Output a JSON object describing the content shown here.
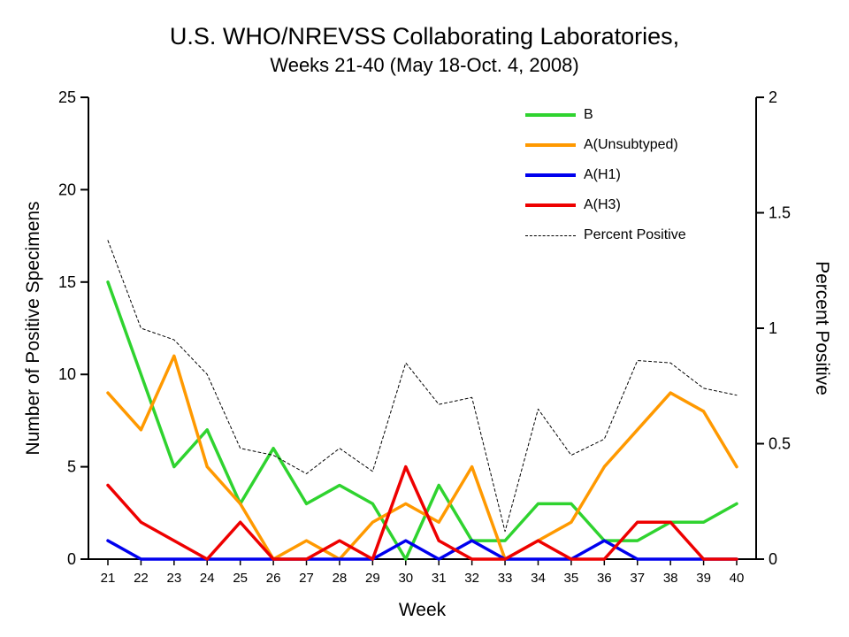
{
  "title": "U.S. WHO/NREVSS Collaborating Laboratories,",
  "subtitle": "Weeks 21-40 (May 18-Oct. 4, 2008)",
  "chart_data": {
    "type": "line",
    "x": [
      21,
      22,
      23,
      24,
      25,
      26,
      27,
      28,
      29,
      30,
      31,
      32,
      33,
      34,
      35,
      36,
      37,
      38,
      39,
      40
    ],
    "xlabel": "Week",
    "ylabel_left": "Number of Positive Specimens",
    "ylabel_right": "Percent Positive",
    "ylim_left": [
      0,
      25
    ],
    "yticks_left": [
      0,
      5,
      10,
      15,
      20,
      25
    ],
    "ylim_right": [
      0,
      2
    ],
    "yticks_right": [
      0,
      0.5,
      1,
      1.5,
      2
    ],
    "grid": false,
    "legend_position": "top-right-inside",
    "series": [
      {
        "name": "B",
        "color": "#2fd32f",
        "axis": "left",
        "style": "solid",
        "values": [
          15,
          10,
          5,
          7,
          3,
          6,
          3,
          4,
          3,
          0,
          4,
          1,
          1,
          3,
          3,
          1,
          1,
          2,
          2,
          3
        ]
      },
      {
        "name": "A(Unsubtyped)",
        "color": "#ff9900",
        "axis": "left",
        "style": "solid",
        "values": [
          9,
          7,
          11,
          5,
          3,
          0,
          1,
          0,
          2,
          3,
          2,
          5,
          0,
          1,
          2,
          5,
          7,
          9,
          8,
          5
        ]
      },
      {
        "name": "A(H1)",
        "color": "#0000ee",
        "axis": "left",
        "style": "solid",
        "values": [
          1,
          0,
          0,
          0,
          0,
          0,
          0,
          0,
          0,
          1,
          0,
          1,
          0,
          0,
          0,
          1,
          0,
          0,
          0,
          0
        ]
      },
      {
        "name": "A(H3)",
        "color": "#ee0000",
        "axis": "left",
        "style": "solid",
        "values": [
          4,
          2,
          1,
          0,
          2,
          0,
          0,
          1,
          0,
          5,
          1,
          0,
          0,
          1,
          0,
          0,
          2,
          2,
          0,
          0
        ]
      },
      {
        "name": "Percent Positive",
        "color": "#000000",
        "axis": "right",
        "style": "dashed",
        "values": [
          1.38,
          1.0,
          0.95,
          0.8,
          0.48,
          0.45,
          0.37,
          0.48,
          0.38,
          0.85,
          0.67,
          0.7,
          0.12,
          0.65,
          0.45,
          0.52,
          0.86,
          0.85,
          0.74,
          0.71
        ]
      }
    ]
  }
}
